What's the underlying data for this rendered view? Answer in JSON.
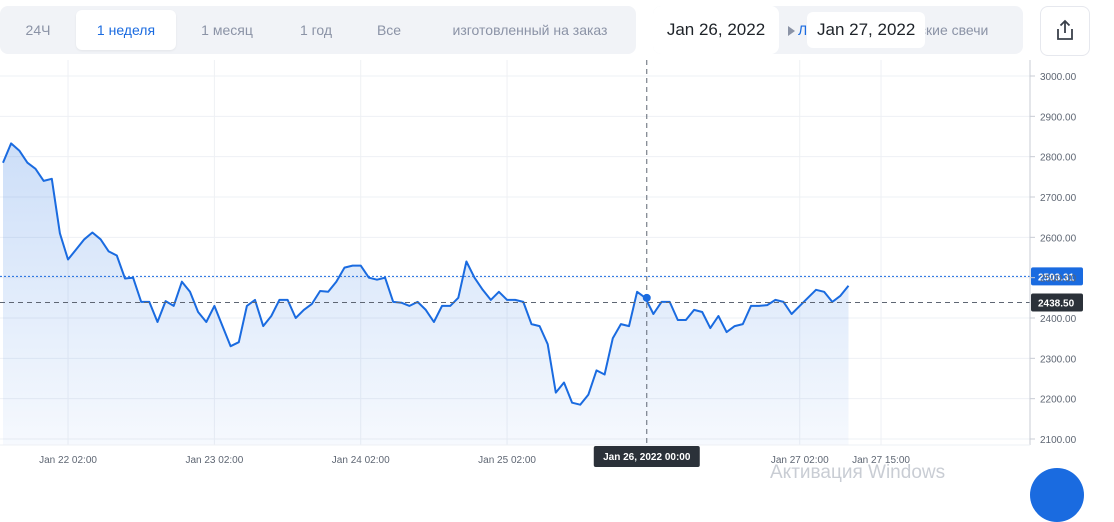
{
  "toolbar": {
    "ranges": [
      {
        "label": "24Ч",
        "active": false
      },
      {
        "label": "1 неделя",
        "active": true
      },
      {
        "label": "1 месяц",
        "active": false
      },
      {
        "label": "1 год",
        "active": false
      },
      {
        "label": "Все",
        "active": false
      },
      {
        "label": "изготовленный на заказ",
        "active": false
      }
    ],
    "date_start": "Jan 26, 2022",
    "date_end": "Jan 27, 2022",
    "toggle_label_visible": "Ли",
    "toggle_label_partial": "ские свечи",
    "share_icon": "share-icon"
  },
  "watermark": "Активация Windows",
  "colors": {
    "line": "#1a6be0",
    "fill": "#dce9fb",
    "current_price_label": "#1a6be0",
    "crosshair_label": "#2b3139",
    "grid": "#eef0f4"
  },
  "chart_data": {
    "type": "area",
    "ylim": [
      2100,
      3000
    ],
    "y_ticks": [
      "3000.00",
      "2900.00",
      "2800.00",
      "2700.00",
      "2600.00",
      "2500.00",
      "2400.00",
      "2300.00",
      "2200.00",
      "2100.00"
    ],
    "x_ticks": [
      {
        "label": "Jan 22 02:00",
        "index": 8
      },
      {
        "label": "Jan 23 02:00",
        "index": 26
      },
      {
        "label": "Jan 24 02:00",
        "index": 44
      },
      {
        "label": "Jan 25 02:00",
        "index": 62
      },
      {
        "label": "Jan 27 02:00",
        "index": 98
      },
      {
        "label": "Jan 27 15:00",
        "index": 108
      }
    ],
    "current_price": "2503.31",
    "current_price_value": 2503.31,
    "crosshair": {
      "index": 79,
      "label": "Jan 26, 2022 00:00",
      "price_label": "2438.50",
      "price_value": 2438.5
    },
    "series": [
      {
        "values": [
          2785,
          2833,
          2815,
          2785,
          2770,
          2740,
          2745,
          2610,
          2545,
          2570,
          2595,
          2612,
          2595,
          2565,
          2555,
          2498,
          2500,
          2440,
          2440,
          2390,
          2442,
          2430,
          2490,
          2465,
          2415,
          2390,
          2430,
          2380,
          2330,
          2340,
          2430,
          2445,
          2380,
          2405,
          2445,
          2445,
          2400,
          2420,
          2435,
          2467,
          2465,
          2490,
          2525,
          2530,
          2530,
          2500,
          2495,
          2500,
          2440,
          2438,
          2430,
          2440,
          2420,
          2390,
          2430,
          2430,
          2450,
          2540,
          2500,
          2470,
          2445,
          2465,
          2445,
          2445,
          2440,
          2385,
          2380,
          2335,
          2215,
          2240,
          2190,
          2185,
          2210,
          2270,
          2260,
          2350,
          2385,
          2380,
          2465,
          2450,
          2410,
          2440,
          2440,
          2395,
          2395,
          2420,
          2415,
          2375,
          2405,
          2365,
          2380,
          2385,
          2430,
          2430,
          2432,
          2445,
          2440,
          2410,
          2430,
          2450,
          2470,
          2465,
          2440,
          2455,
          2480
        ]
      }
    ]
  }
}
